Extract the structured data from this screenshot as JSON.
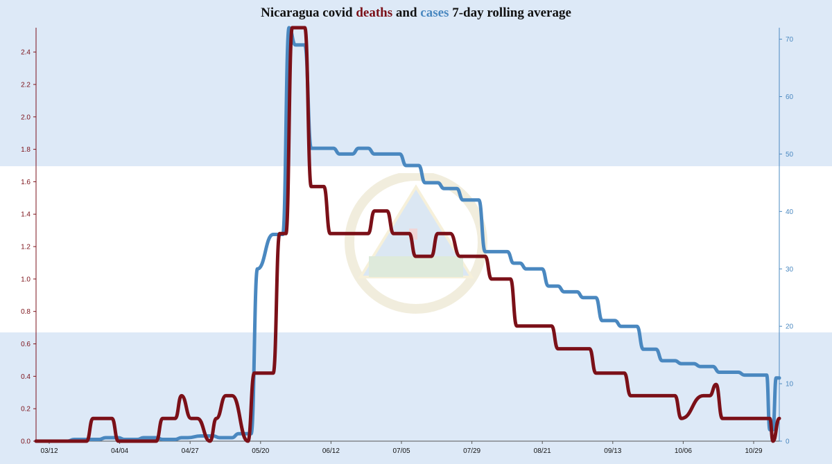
{
  "title": {
    "prefix": "Nicaragua covid ",
    "deaths_word": "deaths",
    "middle": " and ",
    "cases_word": "cases",
    "suffix": " 7-day rolling average"
  },
  "colors": {
    "deaths": "#7b1018",
    "cases": "#4a88c0",
    "flag_blue": "#dde9f7",
    "flag_white": "#ffffff",
    "axis_text": "#111111"
  },
  "chart_data": {
    "type": "line",
    "title": "Nicaragua covid deaths and cases 7-day rolling average",
    "x_tick_labels": [
      "03/12",
      "04/04",
      "04/27",
      "05/20",
      "06/12",
      "07/05",
      "07/29",
      "08/21",
      "09/13",
      "10/06",
      "10/29"
    ],
    "x_day_range": [
      0,
      235
    ],
    "left_axis": {
      "series": "deaths",
      "ylim": [
        0,
        2.55
      ],
      "ticks": [
        "0.0",
        "0.2",
        "0.4",
        "0.6",
        "0.8",
        "1.0",
        "1.2",
        "1.4",
        "1.6",
        "1.8",
        "2.0",
        "2.2",
        "2.4"
      ]
    },
    "right_axis": {
      "series": "cases",
      "ylim": [
        0,
        72
      ],
      "ticks": [
        "0",
        "10",
        "20",
        "30",
        "40",
        "50",
        "60",
        "70"
      ]
    },
    "grid": false,
    "series": [
      {
        "name": "deaths",
        "axis": "left",
        "x": [
          0,
          16,
          18,
          24,
          26,
          38,
          40,
          44,
          46,
          49,
          51,
          55,
          57,
          60,
          62,
          67,
          69,
          75,
          77,
          79,
          81,
          85,
          87,
          91,
          93,
          96,
          98,
          105,
          107,
          111,
          113,
          118,
          120,
          125,
          127,
          131,
          134,
          142,
          144,
          150,
          152,
          155,
          157,
          163,
          165,
          175,
          177,
          181,
          183,
          186,
          188,
          192,
          194,
          202,
          204,
          211,
          213,
          215,
          217,
          220,
          222,
          232,
          233,
          235
        ],
        "y": [
          0,
          0,
          0.14,
          0.14,
          0,
          0,
          0.14,
          0.14,
          0.28,
          0.14,
          0.14,
          0,
          0.14,
          0.28,
          0.28,
          0,
          0.42,
          0.42,
          1.28,
          1.28,
          2.55,
          2.55,
          1.57,
          1.57,
          1.28,
          1.28,
          1.28,
          1.28,
          1.42,
          1.42,
          1.28,
          1.28,
          1.14,
          1.14,
          1.28,
          1.28,
          1.14,
          1.14,
          1.0,
          1.0,
          0.71,
          0.71,
          0.71,
          0.71,
          0.57,
          0.57,
          0.42,
          0.42,
          0.42,
          0.42,
          0.28,
          0.28,
          0.28,
          0.28,
          0.14,
          0.28,
          0.28,
          0.35,
          0.14,
          0.14,
          0.14,
          0.14,
          0,
          0.14
        ]
      },
      {
        "name": "cases",
        "axis": "right",
        "x": [
          0,
          10,
          12,
          20,
          22,
          26,
          28,
          32,
          34,
          38,
          40,
          44,
          46,
          48,
          52,
          56,
          58,
          62,
          64,
          68,
          70,
          75,
          77,
          78,
          80,
          82,
          83,
          85,
          87,
          94,
          96,
          100,
          102,
          105,
          107,
          115,
          117,
          121,
          123,
          127,
          129,
          133,
          135,
          140,
          142,
          149,
          151,
          153,
          155,
          160,
          162,
          165,
          167,
          171,
          173,
          177,
          179,
          183,
          185,
          190,
          192,
          196,
          198,
          202,
          204,
          208,
          210,
          214,
          216,
          222,
          224,
          231,
          232,
          233,
          234,
          235
        ],
        "y": [
          0,
          0,
          0.3,
          0.3,
          0.6,
          0.6,
          0.3,
          0.3,
          0.6,
          0.6,
          0.3,
          0.3,
          0.6,
          0.6,
          0.9,
          0.9,
          0.6,
          0.6,
          1.3,
          1.3,
          30,
          36,
          36,
          36,
          72,
          69,
          69,
          69,
          51,
          51,
          50,
          50,
          51,
          51,
          50,
          50,
          48,
          48,
          45,
          45,
          44,
          44,
          42,
          42,
          33,
          33,
          31,
          31,
          30,
          30,
          27,
          27,
          26,
          26,
          25,
          25,
          21,
          21,
          20,
          20,
          16,
          16,
          14,
          14,
          13.5,
          13.5,
          13,
          13,
          12,
          12,
          11.5,
          11.5,
          2,
          2,
          11,
          11
        ]
      }
    ]
  }
}
